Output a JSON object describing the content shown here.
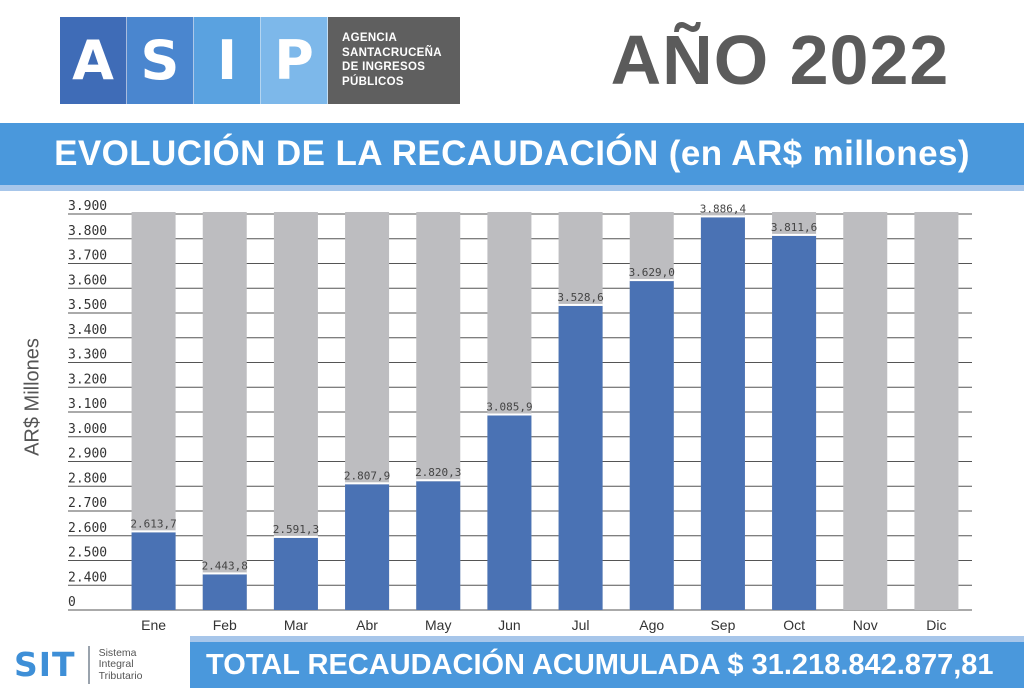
{
  "header": {
    "logo_letters": [
      "A",
      "S",
      "I",
      "P"
    ],
    "logo_cell_colors": [
      "#3f6cb7",
      "#4a86cf",
      "#5aa2e0",
      "#7db8ea"
    ],
    "agency_lines": [
      "AGENCIA",
      "SANTACRUCEÑA",
      "DE INGRESOS",
      "PÚBLICOS"
    ],
    "year_title": "AÑO 2022"
  },
  "title_band": "EVOLUCIÓN DE LA RECAUDACIÓN (en AR$ millones)",
  "chart_data": {
    "type": "bar",
    "ylabel": "AR$ Millones",
    "categories": [
      "Ene",
      "Feb",
      "Mar",
      "Abr",
      "May",
      "Jun",
      "Jul",
      "Ago",
      "Sep",
      "Oct",
      "Nov",
      "Dic"
    ],
    "values": [
      2613.7,
      2443.8,
      2591.3,
      2807.9,
      2820.3,
      3085.9,
      3528.6,
      3629.0,
      3886.4,
      3811.6,
      null,
      null
    ],
    "value_labels": [
      "2.613,7",
      "2.443,8",
      "2.591,3",
      "2.807,9",
      "2.820,3",
      "3.085,9",
      "3.528,6",
      "3.629,0",
      "3.886,4",
      "3.811,6",
      "",
      ""
    ],
    "yticks": [
      "0",
      "2.400",
      "2.500",
      "2.600",
      "2.700",
      "2.800",
      "2.900",
      "3.000",
      "3.100",
      "3.200",
      "3.300",
      "3.400",
      "3.500",
      "3.600",
      "3.700",
      "3.800",
      "3.900"
    ],
    "ytick_values": [
      2300,
      2400,
      2500,
      2600,
      2700,
      2800,
      2900,
      3000,
      3100,
      3200,
      3300,
      3400,
      3500,
      3600,
      3700,
      3800,
      3900
    ],
    "ylim": [
      2300,
      3900
    ],
    "axis_break": "0 label at bottom, axis starts at 2.300 implied",
    "grid": true,
    "legend": "none",
    "colors": {
      "bar": "#4a72b4",
      "background_bar": "#bdbdc0",
      "grid": "#555555",
      "label": "#444444"
    }
  },
  "footer": {
    "sit_mark": "SIT",
    "sit_lines": [
      "Sistema",
      "Integral",
      "Tributario"
    ],
    "total_text": "TOTAL RECAUDACIÓN ACUMULADA $ 31.218.842.877,81"
  }
}
